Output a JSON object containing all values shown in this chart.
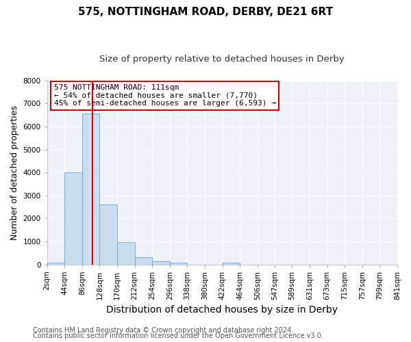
{
  "title": "575, NOTTINGHAM ROAD, DERBY, DE21 6RT",
  "subtitle": "Size of property relative to detached houses in Derby",
  "xlabel": "Distribution of detached houses by size in Derby",
  "ylabel": "Number of detached properties",
  "footer_line1": "Contains HM Land Registry data © Crown copyright and database right 2024.",
  "footer_line2": "Contains public sector information licensed under the Open Government Licence v3.0.",
  "bin_edges": [
    2,
    44,
    86,
    128,
    170,
    212,
    254,
    296,
    338,
    380,
    422,
    464,
    506,
    547,
    589,
    631,
    673,
    715,
    757,
    799,
    841
  ],
  "bin_counts": [
    60,
    4000,
    6550,
    2600,
    960,
    320,
    130,
    60,
    0,
    0,
    60,
    0,
    0,
    0,
    0,
    0,
    0,
    0,
    0,
    0
  ],
  "bar_color": "#ccddf0",
  "bar_edge_color": "#7aafd4",
  "vline_color": "#cc0000",
  "vline_x": 111,
  "annotation_title": "575 NOTTINGHAM ROAD: 111sqm",
  "annotation_line1": "← 54% of detached houses are smaller (7,770)",
  "annotation_line2": "45% of semi-detached houses are larger (6,593) →",
  "annotation_box_color": "#cc0000",
  "ylim": [
    0,
    8000
  ],
  "yticks": [
    0,
    1000,
    2000,
    3000,
    4000,
    5000,
    6000,
    7000,
    8000
  ],
  "fig_bg": "#ffffff",
  "plot_bg": "#eef2f8",
  "grid_color": "#ffffff",
  "title_fontsize": 11,
  "subtitle_fontsize": 9.5,
  "xlabel_fontsize": 10,
  "ylabel_fontsize": 9,
  "tick_fontsize": 7.5,
  "annot_fontsize": 8,
  "footer_fontsize": 7
}
